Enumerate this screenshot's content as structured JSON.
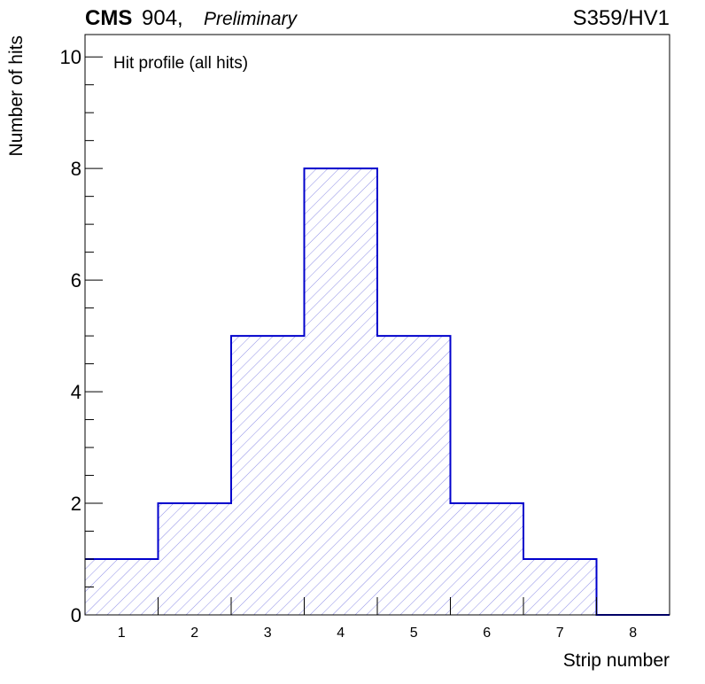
{
  "header": {
    "experiment": "CMS",
    "facility": " 904,",
    "status": "Preliminary",
    "run_label": "S359/HV1"
  },
  "chart_data": {
    "type": "bar",
    "style": "step-histogram",
    "title": "Hit profile (all hits)",
    "xlabel": "Strip number",
    "ylabel": "Number of hits",
    "categories": [
      "1",
      "2",
      "3",
      "4",
      "5",
      "6",
      "7",
      "8"
    ],
    "values": [
      1,
      2,
      5,
      8,
      5,
      2,
      1,
      0
    ],
    "xlim": [
      0.5,
      8.5
    ],
    "ylim": [
      0,
      10.4
    ],
    "yticks": [
      0,
      2,
      4,
      6,
      8,
      10
    ],
    "grid": false,
    "legend": "none",
    "colors": {
      "line": "#0000cc",
      "hatch": "#8f8fe6",
      "axis": "#000000"
    }
  }
}
